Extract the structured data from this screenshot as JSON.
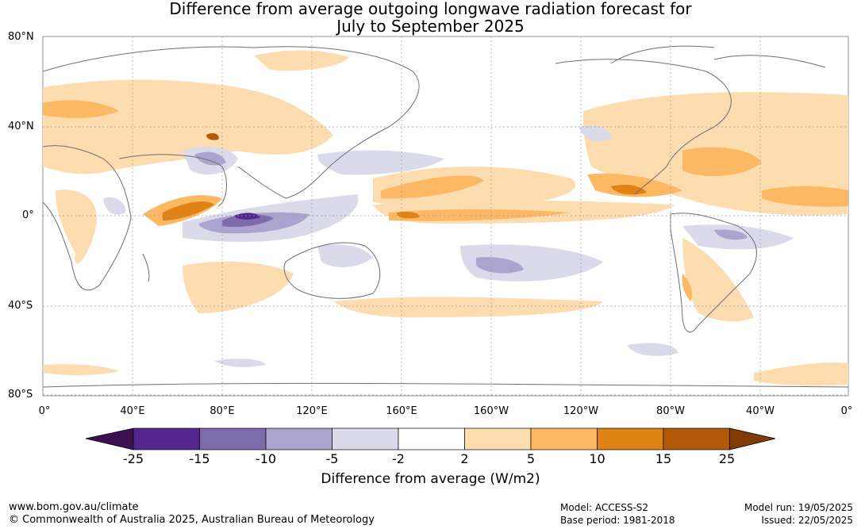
{
  "title": {
    "line1": "Difference from average outgoing longwave radiation forecast for",
    "line2": "July to September 2025"
  },
  "map": {
    "lat_labels": [
      "80°N",
      "40°N",
      "0°",
      "40°S",
      "80°S"
    ],
    "lon_labels": [
      "0°",
      "40°E",
      "80°E",
      "120°E",
      "160°E",
      "160°W",
      "120°W",
      "80°W",
      "40°W",
      "0°"
    ],
    "coastline_color": "#6e6e6e",
    "grid_color": "#9a9a9a"
  },
  "colorbar": {
    "label": "Difference from average (W/m2)",
    "ticks": [
      "-25",
      "-15",
      "-10",
      "-5",
      "-2",
      "2",
      "5",
      "10",
      "15",
      "25"
    ],
    "colors": [
      "#3b0f52",
      "#54278f",
      "#7e6bab",
      "#aba4cf",
      "#dadaeb",
      "#ffffff",
      "#fddcb0",
      "#fdb863",
      "#e08214",
      "#b35806",
      "#7f3b08"
    ]
  },
  "footer": {
    "url": "www.bom.gov.au/climate",
    "copyright": "© Commonwealth of Australia 2025, Australian Bureau of Meteorology",
    "model": "Model: ACCESS-S2",
    "base_period": "Base period: 1981-2018",
    "model_run": "Model run: 19/05/2025",
    "issued": "Issued: 22/05/2025"
  }
}
